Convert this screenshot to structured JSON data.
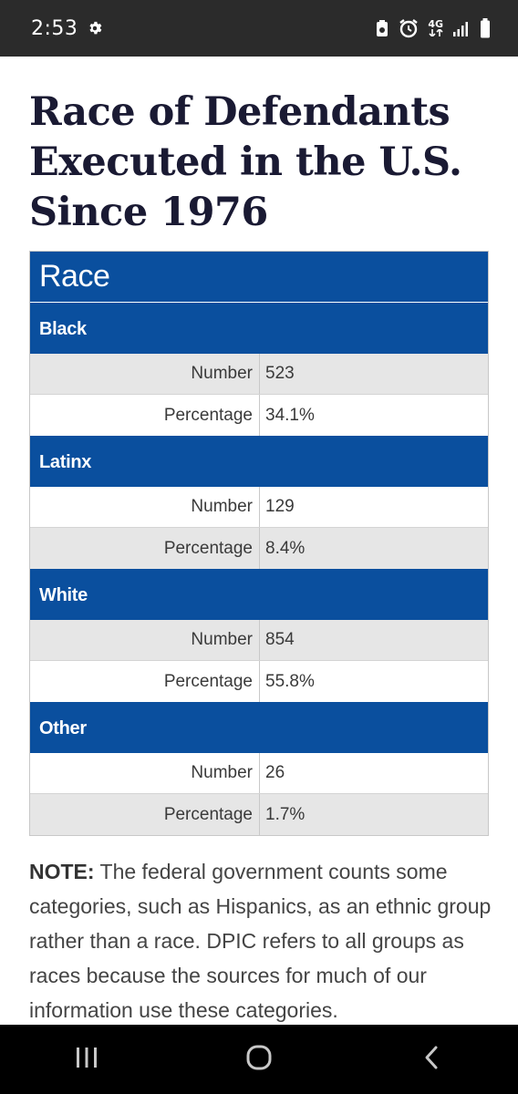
{
  "status_bar": {
    "time": "2:53",
    "network_label": "4G",
    "icons": [
      "settings-icon",
      "battery-saver-icon",
      "alarm-icon",
      "network-4g-icon",
      "signal-icon",
      "battery-icon"
    ]
  },
  "page": {
    "title_lines": [
      "Race of Defendants",
      "Executed in the U.S.",
      "Since 1976"
    ]
  },
  "table": {
    "header": "Race",
    "groups": [
      {
        "name": "Black",
        "rows": [
          {
            "label": "Number",
            "value": "523"
          },
          {
            "label": "Percentage",
            "value": "34.1%"
          }
        ]
      },
      {
        "name": "Latinx",
        "rows": [
          {
            "label": "Number",
            "value": "129"
          },
          {
            "label": "Percentage",
            "value": "8.4%"
          }
        ]
      },
      {
        "name": "White",
        "rows": [
          {
            "label": "Number",
            "value": "854"
          },
          {
            "label": "Percentage",
            "value": "55.8%"
          }
        ]
      },
      {
        "name": "Other",
        "rows": [
          {
            "label": "Number",
            "value": "26"
          },
          {
            "label": "Percentage",
            "value": "1.7%"
          }
        ]
      }
    ]
  },
  "note": {
    "label": "NOTE:",
    "text": " The federal government counts some categories, such as Hispanics, as an ethnic group rather than a race. DPIC refers to all groups as races because the sources for much of our information use these categories."
  },
  "nav_bar": {
    "buttons": [
      "recent-apps-icon",
      "home-icon",
      "back-icon"
    ]
  },
  "colors": {
    "header_blue": "#0a4f9e",
    "status_bar_bg": "#2b2b2b",
    "shaded_row": "#e6e6e6",
    "title_color": "#1a1a33"
  }
}
